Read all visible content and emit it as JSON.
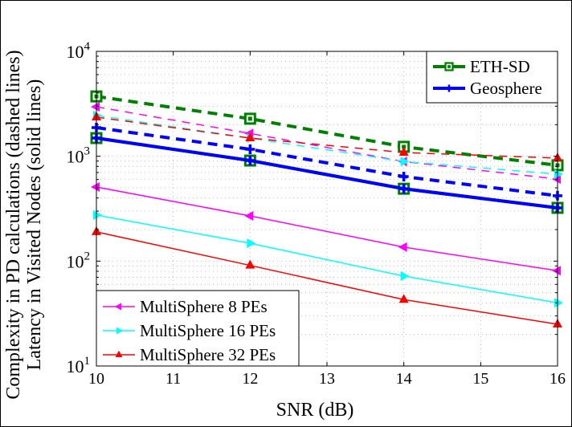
{
  "chart_data": {
    "type": "line",
    "title": "",
    "xlabel": "SNR (dB)",
    "ylabel_lines": [
      "Complexity in PD calculations (dashed lines)",
      "Latency in Visited Nodes (solid lines)"
    ],
    "x": [
      10,
      12,
      14,
      16
    ],
    "xlim": [
      10,
      16
    ],
    "x_ticks": [
      10,
      11,
      12,
      13,
      14,
      15,
      16
    ],
    "y_scale": "log",
    "ylim": [
      10,
      10000
    ],
    "y_ticks": [
      {
        "base": "10",
        "exp": "1"
      },
      {
        "base": "10",
        "exp": "2"
      },
      {
        "base": "10",
        "exp": "3"
      },
      {
        "base": "10",
        "exp": "4"
      }
    ],
    "grid": true,
    "series": [
      {
        "name": "ETH-SD (complexity)",
        "legend": "ETH-SD",
        "style": "dashed",
        "color": "#008000",
        "marker": "square",
        "values": [
          3720,
          2280,
          1230,
          820
        ]
      },
      {
        "name": "MultiSphere 8 PEs (complexity)",
        "style": "dashed-thin",
        "color": "#ff00ff",
        "marker": "triangle-left",
        "values": [
          2960,
          1650,
          890,
          605
        ]
      },
      {
        "name": "MultiSphere 16 PEs (complexity)",
        "style": "dashed-thin",
        "color": "#00ffff",
        "marker": "triangle-right",
        "values": [
          2450,
          1490,
          890,
          675
        ]
      },
      {
        "name": "MultiSphere 32 PEs (complexity)",
        "style": "dashed-thin",
        "color": "#ff0000",
        "marker": "triangle-up",
        "values": [
          2360,
          1490,
          1085,
          960
        ]
      },
      {
        "name": "Geosphere (complexity)",
        "legend": "Geosphere",
        "style": "dashed",
        "color": "#0000ff",
        "marker": "cross",
        "values": [
          1875,
          1165,
          640,
          420
        ]
      },
      {
        "name": "ETH-SD (latency)",
        "style": "solid",
        "color": "#008000",
        "marker": "square",
        "values": [
          1490,
          910,
          490,
          322
        ]
      },
      {
        "name": "Geosphere (latency)",
        "style": "solid",
        "color": "#0000ff",
        "marker": "cross",
        "values": [
          1490,
          910,
          490,
          322
        ]
      },
      {
        "name": "MultiSphere 8 PEs (latency)",
        "legend": "MultiSphere 8 PEs",
        "style": "solid-thin",
        "color": "#ff00ff",
        "marker": "triangle-left",
        "values": [
          509,
          270,
          136,
          81
        ]
      },
      {
        "name": "MultiSphere 16 PEs (latency)",
        "legend": "MultiSphere 16 PEs",
        "style": "solid-thin",
        "color": "#00ffff",
        "marker": "triangle-right",
        "values": [
          275,
          148,
          72,
          40
        ]
      },
      {
        "name": "MultiSphere 32 PEs (latency)",
        "legend": "MultiSphere 32 PEs",
        "style": "solid-thin",
        "color": "#ff0000",
        "marker": "triangle-up",
        "values": [
          190,
          91,
          43,
          25
        ]
      }
    ],
    "legends": [
      {
        "placement": "top-right",
        "entries": [
          {
            "label": "ETH-SD",
            "color": "#008000",
            "marker": "square",
            "thick": true
          },
          {
            "label": "Geosphere",
            "color": "#0000ff",
            "marker": "cross",
            "thick": true
          }
        ]
      },
      {
        "placement": "bottom-left",
        "entries": [
          {
            "label": "MultiSphere 8 PEs",
            "color": "#ff00ff",
            "marker": "triangle-left",
            "thick": false
          },
          {
            "label": "MultiSphere 16 PEs",
            "color": "#00ffff",
            "marker": "triangle-right",
            "thick": false
          },
          {
            "label": "MultiSphere 32 PEs",
            "color": "#ff0000",
            "marker": "triangle-up",
            "thick": false
          }
        ]
      }
    ]
  }
}
